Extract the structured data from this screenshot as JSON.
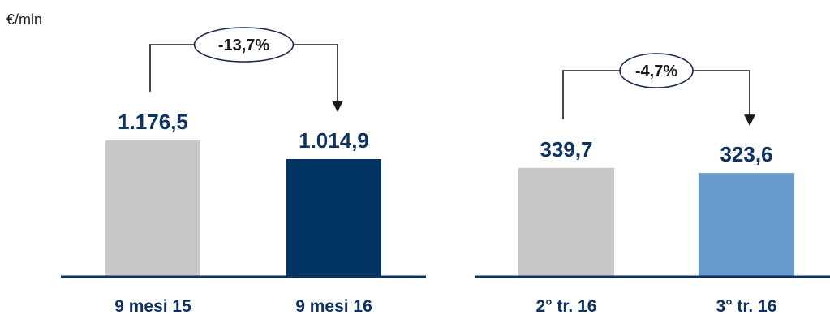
{
  "unit": "€/mln",
  "chart_data": [
    {
      "type": "bar",
      "categories": [
        "9 mesi 15",
        "9 mesi 16"
      ],
      "values": [
        1176.5,
        1014.9
      ],
      "value_labels": [
        "1.176,5",
        "1.014,9"
      ],
      "colors": [
        "#c8c8c8",
        "#003262"
      ],
      "change_label": "-13,7%",
      "ylim": [
        0,
        1400
      ]
    },
    {
      "type": "bar",
      "categories": [
        "2° tr. 16",
        "3° tr. 16"
      ],
      "values": [
        339.7,
        323.6
      ],
      "value_labels": [
        "339,7",
        "323,6"
      ],
      "colors": [
        "#c8c8c8",
        "#6699cc"
      ],
      "change_label": "-4,7%",
      "ylim": [
        0,
        405
      ]
    }
  ]
}
